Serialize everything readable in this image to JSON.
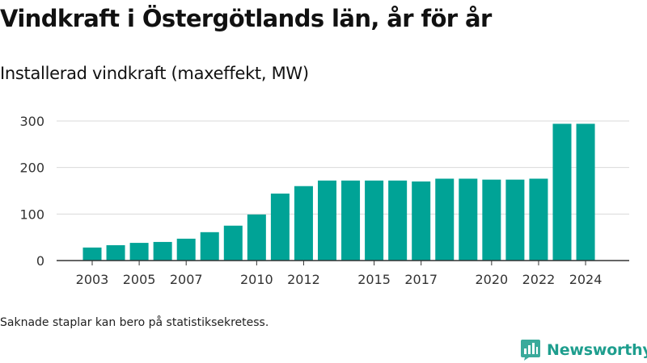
{
  "header": {
    "title": "Vindkraft i Östergötlands län, år för år",
    "subtitle": "Installerad vindkraft (maxeffekt, MW)"
  },
  "footer": {
    "note": "Saknade staplar kan bero på statistiksekretess.",
    "brand": "Newsworthy"
  },
  "colors": {
    "bar": "#00a396",
    "grid": "#d9d9d9",
    "axis": "#333333",
    "brand": "#1e9e8e"
  },
  "chart_data": {
    "type": "bar",
    "title": "Vindkraft i Östergötlands län, år för år",
    "subtitle": "Installerad vindkraft (maxeffekt, MW)",
    "xlabel": "",
    "ylabel": "",
    "categories": [
      "2003",
      "2004",
      "2005",
      "2006",
      "2007",
      "2008",
      "2009",
      "2010",
      "2011",
      "2012",
      "2013",
      "2014",
      "2015",
      "2016",
      "2017",
      "2018",
      "2019",
      "2020",
      "2021",
      "2022",
      "2023",
      "2024"
    ],
    "values": [
      28,
      33,
      38,
      40,
      47,
      61,
      75,
      99,
      144,
      160,
      172,
      172,
      172,
      172,
      170,
      176,
      176,
      174,
      174,
      176,
      294,
      294
    ],
    "x_tick_labels": [
      "2003",
      "2005",
      "2007",
      "2010",
      "2012",
      "2015",
      "2017",
      "2020",
      "2022",
      "2024"
    ],
    "y_ticks": [
      0,
      100,
      200,
      300
    ],
    "ylim": [
      0,
      300
    ],
    "grid": true,
    "legend": "none"
  }
}
